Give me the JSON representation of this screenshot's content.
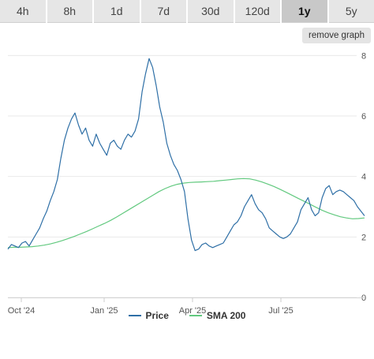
{
  "tabs": [
    {
      "label": "4h",
      "active": false
    },
    {
      "label": "8h",
      "active": false
    },
    {
      "label": "1d",
      "active": false
    },
    {
      "label": "7d",
      "active": false
    },
    {
      "label": "30d",
      "active": false
    },
    {
      "label": "120d",
      "active": false
    },
    {
      "label": "1y",
      "active": true
    },
    {
      "label": "5y",
      "active": false
    }
  ],
  "remove_graph_label": "remove graph",
  "colors": {
    "price": "#2e6fa6",
    "sma": "#62c97f",
    "grid": "#e9e9e9",
    "axis_text": "#555555"
  },
  "chart_data": {
    "type": "line",
    "title": "",
    "xlabel": "",
    "ylabel": "",
    "x_ticks": [
      "Oct '24",
      "Jan '25",
      "Apr '25",
      "Jul '25"
    ],
    "y_ticks": [
      "0",
      "2",
      "4",
      "6",
      "8"
    ],
    "ylim": [
      0,
      8.4
    ],
    "grid": true,
    "legend": "bottom-center",
    "series": [
      {
        "name": "Price",
        "values": [
          1.6,
          1.75,
          1.7,
          1.65,
          1.8,
          1.85,
          1.7,
          1.9,
          2.1,
          2.3,
          2.6,
          2.85,
          3.2,
          3.5,
          3.9,
          4.6,
          5.2,
          5.6,
          5.9,
          6.1,
          5.7,
          5.4,
          5.6,
          5.2,
          5.0,
          5.4,
          5.1,
          4.9,
          4.7,
          5.1,
          5.2,
          5.0,
          4.9,
          5.2,
          5.4,
          5.3,
          5.5,
          5.9,
          6.8,
          7.4,
          7.9,
          7.6,
          7.0,
          6.3,
          5.8,
          5.1,
          4.7,
          4.4,
          4.2,
          3.9,
          3.5,
          2.6,
          1.9,
          1.55,
          1.6,
          1.75,
          1.8,
          1.7,
          1.65,
          1.7,
          1.75,
          1.8,
          2.0,
          2.2,
          2.4,
          2.5,
          2.7,
          3.0,
          3.2,
          3.4,
          3.1,
          2.9,
          2.8,
          2.6,
          2.3,
          2.2,
          2.1,
          2.0,
          1.95,
          2.0,
          2.1,
          2.3,
          2.5,
          2.9,
          3.1,
          3.3,
          2.9,
          2.7,
          2.8,
          3.3,
          3.6,
          3.7,
          3.4,
          3.5,
          3.55,
          3.5,
          3.4,
          3.3,
          3.2,
          3.0,
          2.85,
          2.7
        ]
      },
      {
        "name": "SMA 200",
        "values": [
          1.65,
          1.66,
          1.66,
          1.67,
          1.68,
          1.7,
          1.73,
          1.77,
          1.82,
          1.88,
          1.95,
          2.02,
          2.1,
          2.18,
          2.27,
          2.36,
          2.45,
          2.55,
          2.66,
          2.78,
          2.9,
          3.02,
          3.14,
          3.26,
          3.38,
          3.5,
          3.6,
          3.68,
          3.74,
          3.78,
          3.8,
          3.81,
          3.82,
          3.83,
          3.84,
          3.86,
          3.88,
          3.9,
          3.92,
          3.93,
          3.92,
          3.88,
          3.82,
          3.75,
          3.67,
          3.58,
          3.48,
          3.38,
          3.28,
          3.18,
          3.08,
          2.98,
          2.88,
          2.8,
          2.73,
          2.67,
          2.63,
          2.6,
          2.61,
          2.63
        ]
      }
    ]
  }
}
